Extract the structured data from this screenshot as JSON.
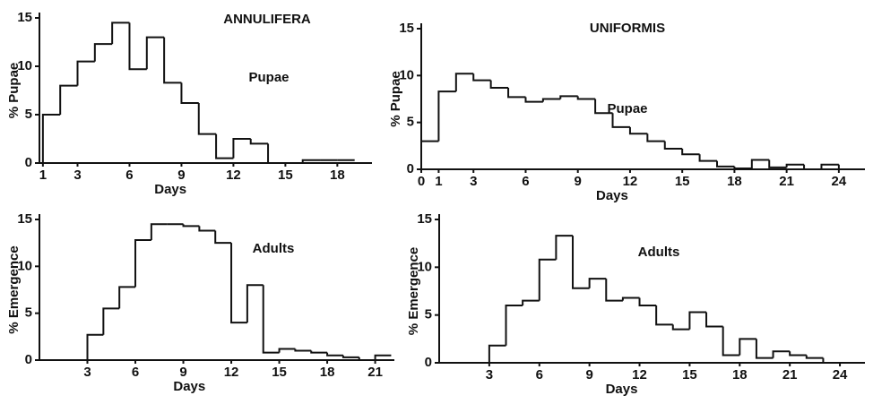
{
  "chart_data": [
    {
      "type": "histogram",
      "title": "ANNULIFERA",
      "ylabel": "% Pupae",
      "xlabel": "Days",
      "annotation": "Pupae",
      "bins": [
        1,
        2,
        3,
        4,
        5,
        6,
        7,
        8,
        9,
        10,
        11,
        12,
        13,
        14,
        15,
        16,
        17,
        18,
        19
      ],
      "values": [
        5,
        8,
        10.5,
        12.3,
        14.5,
        9.7,
        13,
        8.3,
        6.2,
        3,
        0.5,
        2.5,
        2,
        0,
        0,
        0.3,
        0.3,
        0.3
      ],
      "color": "#111111",
      "xlim": [
        0.8,
        20
      ],
      "ylim": [
        0,
        15
      ],
      "xticks": [
        1,
        3,
        6,
        9,
        12,
        15,
        18
      ],
      "yticks": [
        0,
        5,
        10,
        15
      ],
      "grid": false
    },
    {
      "type": "histogram",
      "title": "UNIFORMIS",
      "ylabel": "% Pupae",
      "xlabel": "Days",
      "annotation": "Pupae",
      "bins": [
        0,
        1,
        2,
        3,
        4,
        5,
        6,
        7,
        8,
        9,
        10,
        11,
        12,
        13,
        14,
        15,
        16,
        17,
        18,
        19,
        20,
        21,
        22,
        23,
        24,
        25
      ],
      "values": [
        3,
        8.3,
        10.2,
        9.5,
        8.7,
        7.7,
        7.2,
        7.5,
        7.8,
        7.5,
        6,
        4.5,
        3.8,
        3,
        2.2,
        1.6,
        0.9,
        0.3,
        0.1,
        1,
        0.2,
        0.5,
        0,
        0.5,
        0
      ],
      "color": "#111111",
      "xlim": [
        0,
        25.5
      ],
      "ylim": [
        0,
        15
      ],
      "xticks": [
        0,
        1,
        3,
        6,
        9,
        12,
        15,
        18,
        21,
        24
      ],
      "yticks": [
        0,
        5,
        10,
        15
      ],
      "grid": false
    },
    {
      "type": "histogram",
      "ylabel": "% Emergence",
      "xlabel": "Days",
      "annotation": "Adults",
      "bins": [
        3,
        4,
        5,
        6,
        7,
        8,
        9,
        10,
        11,
        12,
        13,
        14,
        15,
        16,
        17,
        18,
        19,
        20,
        21,
        22
      ],
      "values": [
        2.7,
        5.5,
        7.8,
        12.8,
        14.5,
        14.5,
        14.3,
        13.8,
        12.5,
        4,
        8,
        0.8,
        1.2,
        1,
        0.8,
        0.5,
        0.3,
        0,
        0.5
      ],
      "color": "#111111",
      "xlim": [
        0,
        22.2
      ],
      "ylim": [
        0,
        15
      ],
      "xticks": [
        3,
        6,
        9,
        12,
        15,
        18,
        21
      ],
      "yticks": [
        0,
        5,
        10,
        15
      ],
      "grid": false
    },
    {
      "type": "histogram",
      "ylabel": "% Emergence",
      "xlabel": "Days",
      "annotation": "Adults",
      "bins": [
        3,
        4,
        5,
        6,
        7,
        8,
        9,
        10,
        11,
        12,
        13,
        14,
        15,
        16,
        17,
        18,
        19,
        20,
        21,
        22,
        23,
        24
      ],
      "values": [
        1.8,
        6,
        6.5,
        10.8,
        13.3,
        7.8,
        8.8,
        6.5,
        6.8,
        6,
        4,
        3.5,
        5.3,
        3.8,
        0.8,
        2.5,
        0.5,
        1.2,
        0.8,
        0.5,
        0
      ],
      "color": "#111111",
      "xlim": [
        0,
        25.5
      ],
      "ylim": [
        0,
        15
      ],
      "xticks": [
        3,
        6,
        9,
        12,
        15,
        18,
        21,
        24
      ],
      "yticks": [
        0,
        5,
        10,
        15
      ],
      "grid": false
    }
  ]
}
